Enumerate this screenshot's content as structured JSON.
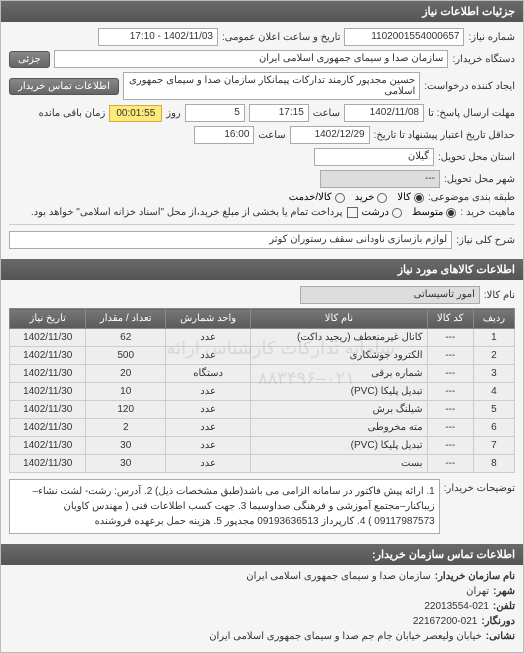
{
  "header": {
    "title": "جزئیات اطلاعات نیاز"
  },
  "general": {
    "number_label": "شماره نیاز:",
    "number": "1102001554000657",
    "datetime_label": "تاریخ و ساعت اعلان عمومی:",
    "datetime": "1402/11/03 - 17:10",
    "buyer_label": "دستگاه خریدار:",
    "buyer": "سازمان صدا و سیمای جمهوری اسلامی ایران",
    "partial_btn": "جزئی",
    "requester_label": "ایجاد کننده درخواست:",
    "requester": "حسین مجدپور کارمند تدارکات پیمانکار سازمان صدا و سیمای جمهوری اسلامی",
    "contact_btn": "اطلاعات تماس خریدار",
    "deadline_label": "مهلت ارسال پاسخ: تا",
    "deadline_date": "1402/11/08",
    "time_label": "ساعت",
    "deadline_time": "17:15",
    "step": "5",
    "step_unit": "روز",
    "remain_label": "زمان باقی مانده",
    "remain_time": "00:01:55",
    "validity_label": "حداقل تاریخ اعتبار پیشنهاد تا تاریخ:",
    "validity_date": "1402/12/29",
    "validity_time": "16:00",
    "province_label": "استان محل تحویل:",
    "province": "گیلان",
    "city_label": "شهر محل تحویل:",
    "city": "---",
    "priority_label": "طبقه بندی موضوعی:",
    "priority_opts": [
      "کالا",
      "خرید",
      "کالا/خدمت"
    ],
    "nature_label": "ماهیت خرید :",
    "nature_opts": [
      "متوسط",
      "درشت"
    ],
    "nature_note": "پرداخت تمام یا بخشی از مبلغ خرید،از محل \"اسناد خزانه اسلامی\" خواهد بود."
  },
  "need": {
    "title_label": "شرح کلی نیاز:",
    "title": "لوازم بازسازی ناودانی سقف رستوران کوثر"
  },
  "goods_header": "اطلاعات کالاهای مورد نیاز",
  "goods": {
    "name_label": "نام کالا:",
    "name": "امور تاسیساتی",
    "columns": [
      "ردیف",
      "کد کالا",
      "نام کالا",
      "واحد شمارش",
      "تعداد / مقدار",
      "تاریخ نیاز"
    ],
    "rows": [
      [
        "1",
        "---",
        "کانال غیرمنعطف (ریجید داکت)",
        "عدد",
        "62",
        "1402/11/30"
      ],
      [
        "2",
        "---",
        "الکترود جوشکاری",
        "عدد",
        "500",
        "1402/11/30"
      ],
      [
        "3",
        "---",
        "شماره برقی",
        "دستگاه",
        "20",
        "1402/11/30"
      ],
      [
        "4",
        "---",
        "تبدیل پلیکا (PVC)",
        "عدد",
        "10",
        "1402/11/30"
      ],
      [
        "5",
        "---",
        "شیلنگ برش",
        "عدد",
        "120",
        "1402/11/30"
      ],
      [
        "6",
        "---",
        "مته مخروطی",
        "عدد",
        "2",
        "1402/11/30"
      ],
      [
        "7",
        "---",
        "تبدیل پلیکا (PVC)",
        "عدد",
        "30",
        "1402/11/30"
      ],
      [
        "8",
        "---",
        "بست",
        "عدد",
        "30",
        "1402/11/30"
      ]
    ],
    "watermark1": "سامانه تدارکات کارشناس ارائه",
    "watermark2": "۰۲۱–۸۸۳۴۹۶"
  },
  "buyer_note": {
    "label": "توضیحات خریدار:",
    "text": "1. ارائه پیش فاکتور در سامانه الزامی می باشد(طبق مشخصات ذیل) 2. آدرس: رشت- لشت نشاء–زیباکنار–مجتمع آموزشی و فرهنگی صداوسیما 3. جهت کسب اطلاعات فنی ( مهندس کاویان 09117987573 ) 4. کارپرداز 09193636513 مجدپور 5. هزینه حمل برعهده فروشنده"
  },
  "contact": {
    "header": "اطلاعات تماس سازمان خریدار:",
    "org_label": "نام سازمان خریدار:",
    "org": "سازمان صدا و سیمای جمهوری اسلامی ایران",
    "city_label": "شهر:",
    "city": "تهران",
    "phone_label": "تلفن:",
    "phone": "22013554-021",
    "fax_label": "دورنگار:",
    "fax": "22167200-021",
    "address_label": "نشانی:",
    "address": "خیابان ولیعصر خیابان جام جم صدا و سیمای جمهوری اسلامی ایران"
  }
}
